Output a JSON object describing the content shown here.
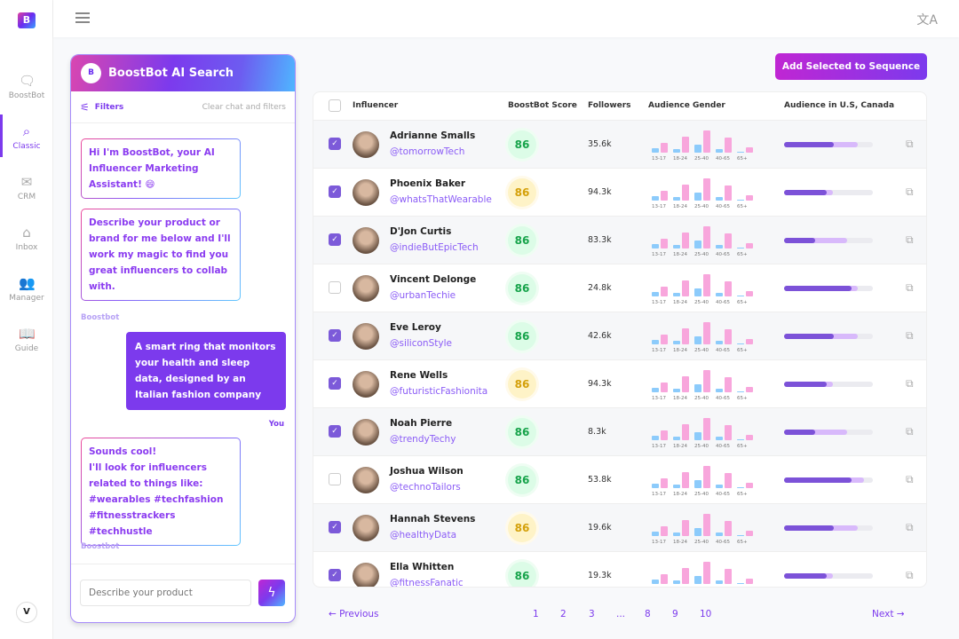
{
  "sidebar": {
    "logo": "B",
    "items": [
      {
        "label": "BoostBot",
        "icon": "chat-sparkle-icon"
      },
      {
        "label": "Classic",
        "icon": "search-icon",
        "active": true
      },
      {
        "label": "CRM",
        "icon": "mail-icon"
      },
      {
        "label": "Inbox",
        "icon": "inbox-icon"
      },
      {
        "label": "Manager",
        "icon": "users-icon"
      },
      {
        "label": "Guide",
        "icon": "book-icon"
      }
    ],
    "user_initial": "V"
  },
  "chat": {
    "title": "BoostBot AI Search",
    "filters_label": "Filters",
    "clear_label": "Clear chat and filters",
    "messages": [
      "Hi I'm BoostBot, your AI Influencer Marketing Assistant! 😄",
      "Describe your product or brand for me below and I'll work my magic to find you great influencers to collab with.",
      "A smart ring that monitors your health and sleep data, designed by an Italian fashion company",
      "Sounds cool!\nI'll look for influencers related to things like:\n#wearables #techfashion\n#fitnesstrackers #techhustle"
    ],
    "bot_label": "Boostbot",
    "you_label": "You",
    "input_placeholder": "Describe your product"
  },
  "toolbar": {
    "add_label": "Add Selected to Sequence"
  },
  "table": {
    "headers": {
      "influencer": "Influencer",
      "score": "BoostBot Score",
      "followers": "Followers",
      "gender": "Audience Gender",
      "region": "Audience in U.S, Canada"
    },
    "age_groups": [
      "13-17",
      "18-24",
      "25-40",
      "40-65",
      "65+"
    ],
    "gender_blue": [
      5,
      4,
      9,
      4,
      1
    ],
    "gender_pink": [
      11,
      18,
      25,
      17,
      6
    ],
    "rows": [
      {
        "name": "Adrianne Smalls",
        "handle": "@tomorrowTech",
        "score": "86",
        "score_color": "green",
        "followers": "35.6k",
        "checked": true,
        "region_pct": 56,
        "region_secondary_pct": 83
      },
      {
        "name": "Phoenix Baker",
        "handle": "@whatsThatWearable",
        "score": "86",
        "score_color": "yellow",
        "followers": "94.3k",
        "checked": true,
        "region_pct": 48,
        "region_secondary_pct": 55
      },
      {
        "name": "D'Jon Curtis",
        "handle": "@indieButEpicTech",
        "score": "86",
        "score_color": "green",
        "followers": "83.3k",
        "checked": true,
        "region_pct": 35,
        "region_secondary_pct": 71
      },
      {
        "name": "Vincent Delonge",
        "handle": "@urbanTechie",
        "score": "86",
        "score_color": "green",
        "followers": "24.8k",
        "checked": false,
        "region_pct": 76,
        "region_secondary_pct": 83
      },
      {
        "name": "Eve Leroy",
        "handle": "@siliconStyle",
        "score": "86",
        "score_color": "green",
        "followers": "42.6k",
        "checked": true,
        "region_pct": 56,
        "region_secondary_pct": 83
      },
      {
        "name": "Rene Wells",
        "handle": "@futuristicFashionita",
        "score": "86",
        "score_color": "yellow",
        "followers": "94.3k",
        "checked": true,
        "region_pct": 48,
        "region_secondary_pct": 55
      },
      {
        "name": "Noah Pierre",
        "handle": "@trendyTechy",
        "score": "86",
        "score_color": "green",
        "followers": "8.3k",
        "checked": true,
        "region_pct": 35,
        "region_secondary_pct": 71
      },
      {
        "name": "Joshua Wilson",
        "handle": "@technoTailors",
        "score": "86",
        "score_color": "green",
        "followers": "53.8k",
        "checked": false,
        "region_pct": 76,
        "region_secondary_pct": 90
      },
      {
        "name": "Hannah Stevens",
        "handle": "@healthyData",
        "score": "86",
        "score_color": "yellow",
        "followers": "19.6k",
        "checked": true,
        "region_pct": 56,
        "region_secondary_pct": 83
      },
      {
        "name": "Ella Whitten",
        "handle": "@fitnessFanatic",
        "score": "86",
        "score_color": "green",
        "followers": "19.3k",
        "checked": true,
        "region_pct": 48,
        "region_secondary_pct": 55
      }
    ]
  },
  "pagination": {
    "previous": "Previous",
    "next": "Next",
    "pages": [
      "1",
      "2",
      "3",
      "...",
      "8",
      "9",
      "10"
    ]
  }
}
